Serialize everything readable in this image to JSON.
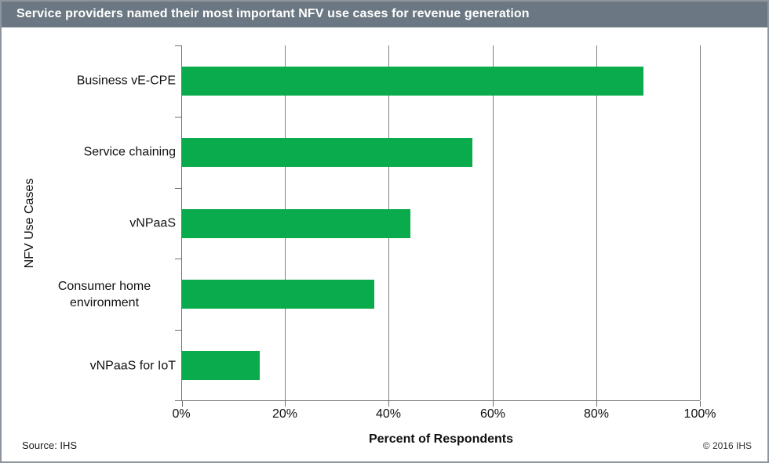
{
  "header": {
    "title": "Service providers named their most important NFV use cases for revenue generation",
    "bg_color": "#6b7883",
    "text_color": "#ffffff"
  },
  "chart_data": {
    "type": "bar",
    "orientation": "horizontal",
    "categories": [
      "Business vE-CPE",
      "Service chaining",
      "vNPaaS",
      "Consumer home environment",
      "vNPaaS for IoT"
    ],
    "values": [
      89,
      56,
      44,
      37,
      15
    ],
    "xlabel": "Percent of Respondents",
    "ylabel": "NFV Use Cases",
    "xlim": [
      0,
      100
    ],
    "xticks": [
      0,
      20,
      40,
      60,
      80,
      100
    ],
    "xtick_labels": [
      "0%",
      "20%",
      "40%",
      "60%",
      "80%",
      "100%"
    ],
    "bar_color": "#0aab4c",
    "gridline_color": "#808080",
    "grid": true,
    "legend": false
  },
  "footer": {
    "source": "Source: IHS",
    "copyright": "© 2016 IHS"
  }
}
